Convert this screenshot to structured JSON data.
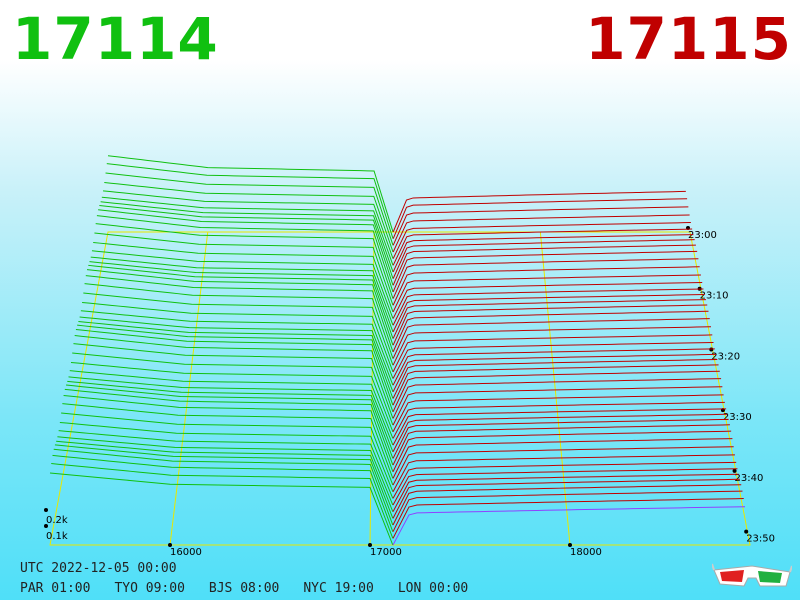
{
  "prices": {
    "bid": "17114",
    "ask": "17115"
  },
  "info": {
    "utc": "UTC 2022-12-05 00:00",
    "zones": [
      "PAR 01:00",
      "TYO 09:00",
      "BJS 08:00",
      "NYC 19:00",
      "LON 00:00"
    ]
  },
  "colors": {
    "bid": "#10c010",
    "ask": "#c00000",
    "frame": "#e8e800",
    "newest": "#9040ff"
  },
  "chart_data": {
    "type": "area",
    "x_ticks": [
      16000,
      17000,
      18000
    ],
    "x_tick_labels": [
      "16000",
      "17000",
      "18000"
    ],
    "z_ticks": [
      0.1,
      0.2
    ],
    "z_tick_labels": [
      "0.1k",
      "0.2k"
    ],
    "time_labels": [
      "23:00",
      "23:10",
      "23:20",
      "23:30",
      "23:40",
      "23:50"
    ],
    "xlim": [
      15400,
      18900
    ],
    "mid_price": 17114.5,
    "series": [
      {
        "name": "17114",
        "side": "bid",
        "x": [
          15400,
          16000,
          17000,
          17114
        ],
        "cumulative_depth_k": [
          0.45,
          0.38,
          0.36,
          0.0
        ]
      },
      {
        "name": "17115",
        "side": "ask",
        "x": [
          17115,
          17200,
          18000,
          18900
        ],
        "cumulative_depth_k": [
          0.0,
          0.2,
          0.22,
          0.24
        ]
      }
    ]
  },
  "icons": {
    "glasses": "3d-glasses-icon"
  }
}
